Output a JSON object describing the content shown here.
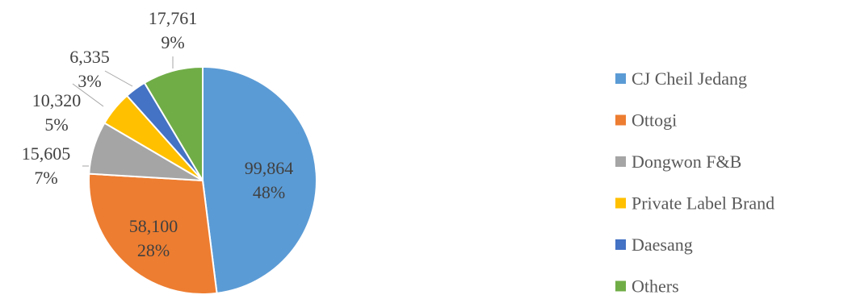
{
  "chart_data": {
    "type": "pie",
    "title": "",
    "categories": [
      "CJ Cheil Jedang",
      "Ottogi",
      "Dongwon F&B",
      "Private Label Brand",
      "Daesang",
      "Others"
    ],
    "values": [
      99864,
      58100,
      15605,
      10320,
      6335,
      17761
    ],
    "value_labels": [
      "99,864",
      "58,100",
      "15,605",
      "10,320",
      "6,335",
      "17,761"
    ],
    "percent_labels": [
      "48%",
      "28%",
      "7%",
      "5%",
      "3%",
      "9%"
    ],
    "colors": [
      "#5B9BD5",
      "#ED7D31",
      "#A5A5A5",
      "#FFC000",
      "#4472C4",
      "#70AD47"
    ],
    "legend_position": "right",
    "start_angle_deg": 0,
    "direction": "clockwise"
  }
}
